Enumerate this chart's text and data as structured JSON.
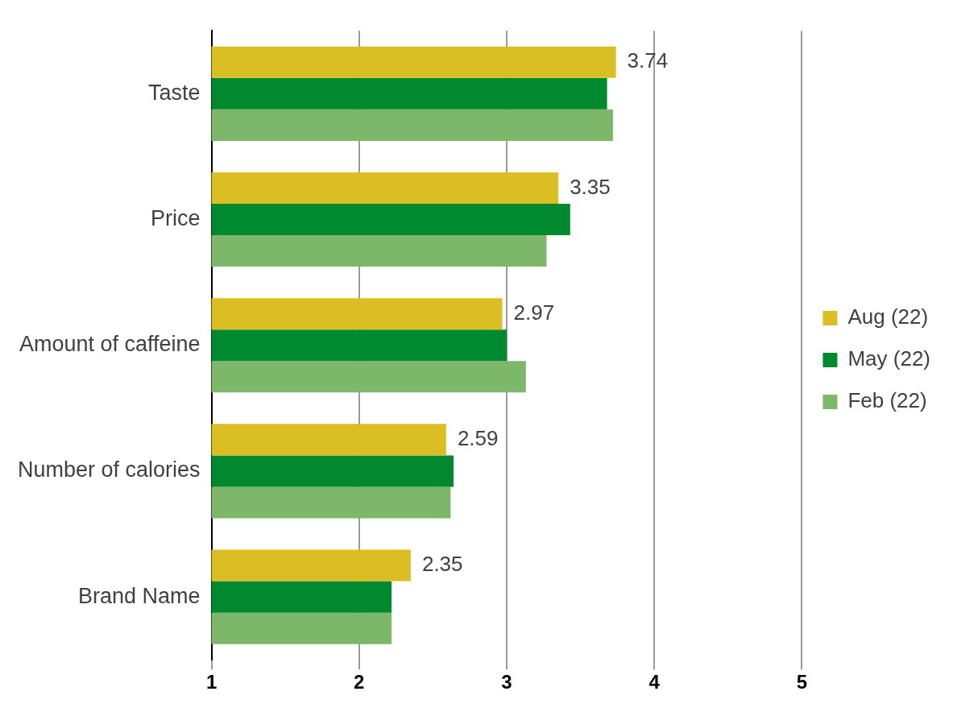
{
  "chart_data": {
    "type": "bar",
    "orientation": "horizontal",
    "categories": [
      "Taste",
      "Price",
      "Amount of caffeine",
      "Number of calories",
      "Brand Name"
    ],
    "series": [
      {
        "name": "Aug (22)",
        "color": "#dbbd24",
        "values": [
          3.74,
          3.35,
          2.97,
          2.59,
          2.35
        ],
        "value_labels": [
          "3.74",
          "3.35",
          "2.97",
          "2.59",
          "2.35"
        ]
      },
      {
        "name": "May (22)",
        "color": "#00892f",
        "values": [
          3.68,
          3.43,
          3.0,
          2.64,
          2.22
        ]
      },
      {
        "name": "Feb (22)",
        "color": "#7db76a",
        "values": [
          3.72,
          3.27,
          3.13,
          2.62,
          2.22
        ]
      }
    ],
    "xlim": [
      1,
      5
    ],
    "xticks": [
      1,
      2,
      3,
      4,
      5
    ],
    "grid": "x",
    "legend": "right"
  }
}
